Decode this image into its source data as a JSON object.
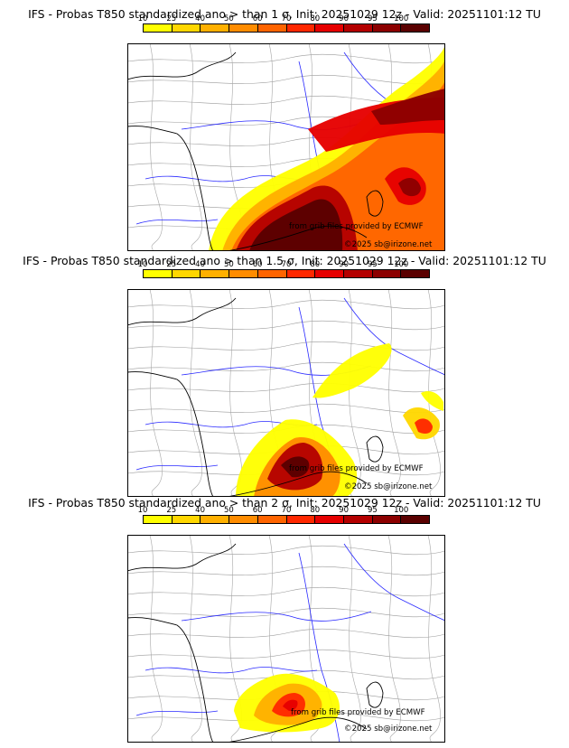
{
  "panels": [
    {
      "title": "IFS - Probas T850  standardized ano > than 1 σ, Init: 20251029 12z - Valid: 20251101:12 TU",
      "variant": "p1",
      "source_text": "from grib files provided by ECMWF",
      "copyright_text": "©2025 sb@irizone.net"
    },
    {
      "title": "IFS - Probas T850  standardized ano > than 1.5 σ, Init: 20251029 12z - Valid: 20251101:12 TU",
      "variant": "p2",
      "source_text": "from grib files provided by ECMWF",
      "copyright_text": "©2025 sb@irizone.net"
    },
    {
      "title": "IFS - Probas T850  standardized ano > than 2 σ, Init: 20251029 12z - Valid: 20251101:12 TU",
      "variant": "p3",
      "source_text": "from grib files provided by ECMWF",
      "copyright_text": "©2025 sb@irizone.net"
    }
  ],
  "colorbar": {
    "ticks": [
      "10",
      "25",
      "40",
      "50",
      "60",
      "70",
      "80",
      "90",
      "95",
      "100"
    ],
    "colors": [
      "#ffff00",
      "#ffd700",
      "#ffb000",
      "#ff8c00",
      "#ff6400",
      "#ff2800",
      "#e60000",
      "#b40000",
      "#8c0000",
      "#5a0000"
    ]
  }
}
